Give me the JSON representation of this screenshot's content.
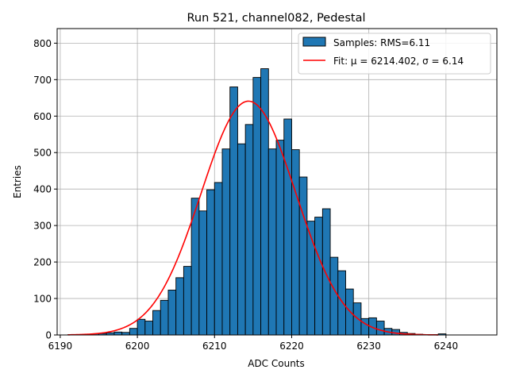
{
  "chart_data": {
    "type": "bar",
    "title": "Run 521, channel082, Pedestal",
    "xlabel": "ADC Counts",
    "ylabel": "Entries",
    "xlim": [
      6189.6,
      6246.6
    ],
    "ylim": [
      0,
      840
    ],
    "xticks": [
      6190,
      6200,
      6210,
      6220,
      6230,
      6240
    ],
    "yticks": [
      0,
      100,
      200,
      300,
      400,
      500,
      600,
      700,
      800
    ],
    "grid": true,
    "legend_position": "top-right",
    "histogram": {
      "label": "Samples: RMS=6.11",
      "color": "#1f77b4",
      "bin_edges_start": 6191,
      "bin_width": 1,
      "counts": [
        1,
        1,
        2,
        3,
        4,
        6,
        8,
        7,
        18,
        43,
        38,
        67,
        95,
        123,
        157,
        188,
        375,
        340,
        398,
        418,
        510,
        680,
        524,
        577,
        706,
        730,
        510,
        534,
        592,
        508,
        433,
        312,
        323,
        346,
        213,
        176,
        126,
        88,
        45,
        47,
        38,
        18,
        15,
        7,
        4,
        2,
        1,
        1,
        3
      ]
    },
    "fit": {
      "label": "Fit: μ = 6214.402, σ = 6.14",
      "color": "#ff0000",
      "mu": 6214.402,
      "sigma": 6.14,
      "amplitude": 641,
      "x_range": [
        6191,
        6239
      ]
    }
  }
}
